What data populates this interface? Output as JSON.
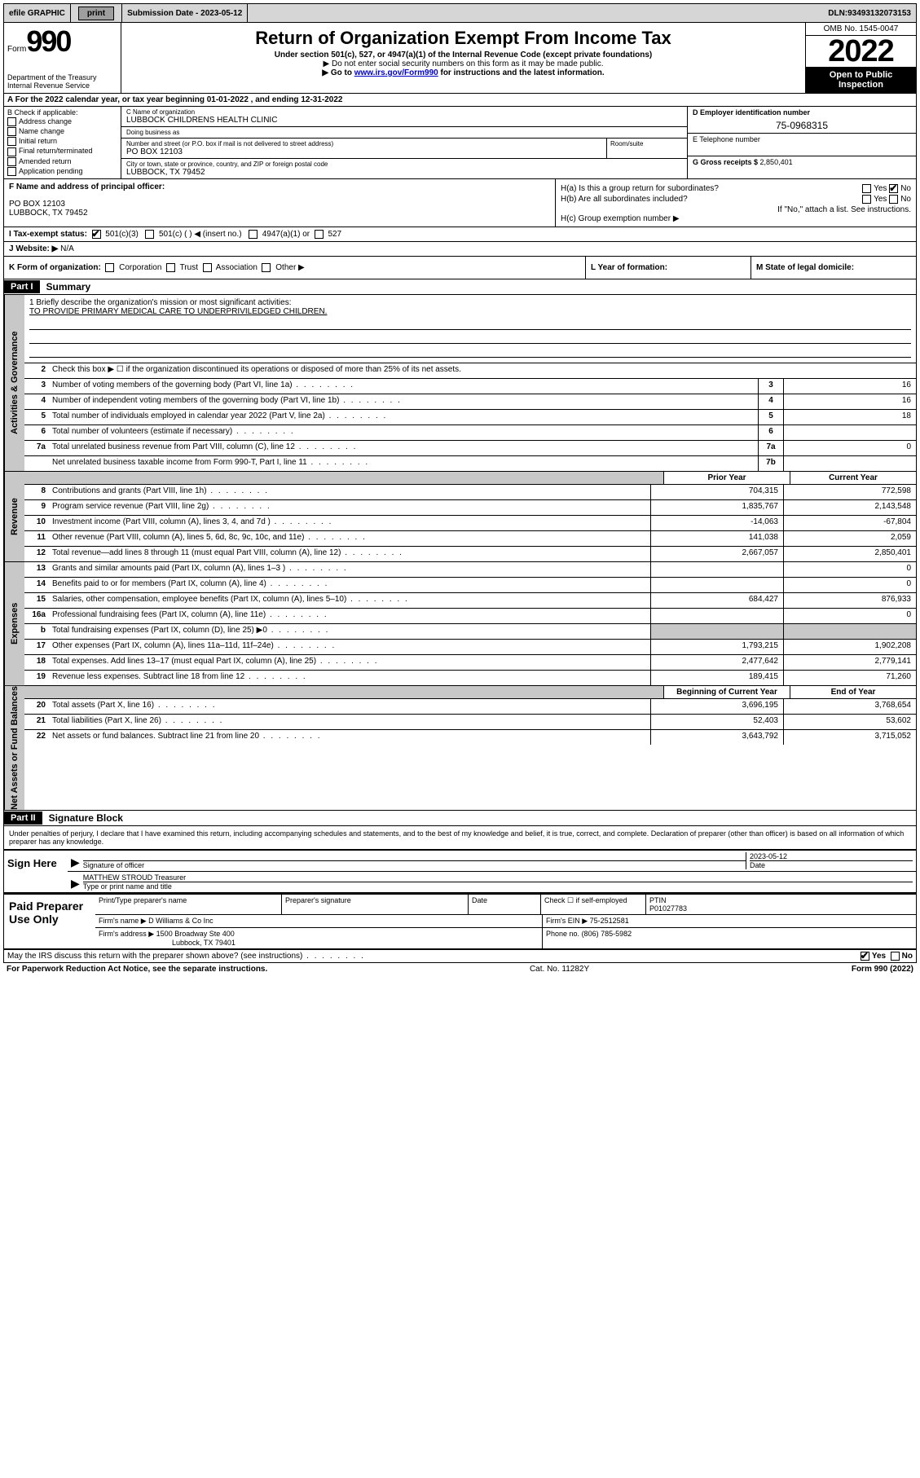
{
  "topbar": {
    "efile": "efile GRAPHIC",
    "print": "print",
    "subdate_label": "Submission Date - ",
    "subdate": "2023-05-12",
    "dln_label": "DLN: ",
    "dln": "93493132073153"
  },
  "header": {
    "form_prefix": "Form",
    "form_num": "990",
    "dept": "Department of the Treasury",
    "irs": "Internal Revenue Service",
    "title": "Return of Organization Exempt From Income Tax",
    "subtitle": "Under section 501(c), 527, or 4947(a)(1) of the Internal Revenue Code (except private foundations)",
    "note1": "▶ Do not enter social security numbers on this form as it may be made public.",
    "note2_pre": "▶ Go to ",
    "note2_link": "www.irs.gov/Form990",
    "note2_post": " for instructions and the latest information.",
    "omb": "OMB No. 1545-0047",
    "year": "2022",
    "open": "Open to Public Inspection"
  },
  "rowA": {
    "text": "A For the 2022 calendar year, or tax year beginning 01-01-2022   , and ending 12-31-2022"
  },
  "secB": {
    "label": "B Check if applicable:",
    "opts": [
      "Address change",
      "Name change",
      "Initial return",
      "Final return/terminated",
      "Amended return",
      "Application pending"
    ]
  },
  "secC": {
    "name_label": "C Name of organization",
    "name": "LUBBOCK CHILDRENS HEALTH CLINIC",
    "dba_label": "Doing business as",
    "addr_label": "Number and street (or P.O. box if mail is not delivered to street address)",
    "addr": "PO BOX 12103",
    "room_label": "Room/suite",
    "city_label": "City or town, state or province, country, and ZIP or foreign postal code",
    "city": "LUBBOCK, TX  79452"
  },
  "secD": {
    "ein_label": "D Employer identification number",
    "ein": "75-0968315",
    "tel_label": "E Telephone number",
    "gross_label": "G Gross receipts $ ",
    "gross": "2,850,401"
  },
  "secF": {
    "label": "F Name and address of principal officer:",
    "addr1": "PO BOX 12103",
    "addr2": "LUBBOCK, TX  79452"
  },
  "secH": {
    "ha": "H(a)  Is this a group return for subordinates?",
    "hb": "H(b)  Are all subordinates included?",
    "hb_note": "If \"No,\" attach a list. See instructions.",
    "hc": "H(c)  Group exemption number ▶",
    "yes": "Yes",
    "no": "No"
  },
  "secI": {
    "label": "I   Tax-exempt status:",
    "c3": "501(c)(3)",
    "c_other": "501(c) (   ) ◀ (insert no.)",
    "a4947": "4947(a)(1) or",
    "s527": "527"
  },
  "secJ": {
    "label": "J   Website: ▶",
    "val": "N/A"
  },
  "secK": {
    "label": "K Form of organization:",
    "opts": [
      "Corporation",
      "Trust",
      "Association",
      "Other ▶"
    ]
  },
  "secL": {
    "label": "L Year of formation:"
  },
  "secM": {
    "label": "M State of legal domicile:"
  },
  "part1": {
    "header": "Part I",
    "title": "Summary",
    "mission_label": "1  Briefly describe the organization's mission or most significant activities:",
    "mission": "TO PROVIDE PRIMARY MEDICAL CARE TO UNDERPRIVILEDGED CHILDREN.",
    "line2": "Check this box ▶ ☐  if the organization discontinued its operations or disposed of more than 25% of its net assets.",
    "tabs": {
      "gov": "Activities & Governance",
      "rev": "Revenue",
      "exp": "Expenses",
      "net": "Net Assets or Fund Balances"
    },
    "hdr_prior": "Prior Year",
    "hdr_current": "Current Year",
    "hdr_begin": "Beginning of Current Year",
    "hdr_end": "End of Year",
    "gov_lines": [
      {
        "n": "3",
        "d": "Number of voting members of the governing body (Part VI, line 1a)",
        "r": "3",
        "v": "16"
      },
      {
        "n": "4",
        "d": "Number of independent voting members of the governing body (Part VI, line 1b)",
        "r": "4",
        "v": "16"
      },
      {
        "n": "5",
        "d": "Total number of individuals employed in calendar year 2022 (Part V, line 2a)",
        "r": "5",
        "v": "18"
      },
      {
        "n": "6",
        "d": "Total number of volunteers (estimate if necessary)",
        "r": "6",
        "v": ""
      },
      {
        "n": "7a",
        "d": "Total unrelated business revenue from Part VIII, column (C), line 12",
        "r": "7a",
        "v": "0"
      },
      {
        "n": "",
        "d": "Net unrelated business taxable income from Form 990-T, Part I, line 11",
        "r": "7b",
        "v": ""
      }
    ],
    "rev_lines": [
      {
        "n": "8",
        "d": "Contributions and grants (Part VIII, line 1h)",
        "p": "704,315",
        "c": "772,598"
      },
      {
        "n": "9",
        "d": "Program service revenue (Part VIII, line 2g)",
        "p": "1,835,767",
        "c": "2,143,548"
      },
      {
        "n": "10",
        "d": "Investment income (Part VIII, column (A), lines 3, 4, and 7d )",
        "p": "-14,063",
        "c": "-67,804"
      },
      {
        "n": "11",
        "d": "Other revenue (Part VIII, column (A), lines 5, 6d, 8c, 9c, 10c, and 11e)",
        "p": "141,038",
        "c": "2,059"
      },
      {
        "n": "12",
        "d": "Total revenue—add lines 8 through 11 (must equal Part VIII, column (A), line 12)",
        "p": "2,667,057",
        "c": "2,850,401"
      }
    ],
    "exp_lines": [
      {
        "n": "13",
        "d": "Grants and similar amounts paid (Part IX, column (A), lines 1–3 )",
        "p": "",
        "c": "0"
      },
      {
        "n": "14",
        "d": "Benefits paid to or for members (Part IX, column (A), line 4)",
        "p": "",
        "c": "0"
      },
      {
        "n": "15",
        "d": "Salaries, other compensation, employee benefits (Part IX, column (A), lines 5–10)",
        "p": "684,427",
        "c": "876,933"
      },
      {
        "n": "16a",
        "d": "Professional fundraising fees (Part IX, column (A), line 11e)",
        "p": "",
        "c": "0"
      },
      {
        "n": "b",
        "d": "Total fundraising expenses (Part IX, column (D), line 25) ▶0",
        "p": "shaded",
        "c": "shaded"
      },
      {
        "n": "17",
        "d": "Other expenses (Part IX, column (A), lines 11a–11d, 11f–24e)",
        "p": "1,793,215",
        "c": "1,902,208"
      },
      {
        "n": "18",
        "d": "Total expenses. Add lines 13–17 (must equal Part IX, column (A), line 25)",
        "p": "2,477,642",
        "c": "2,779,141"
      },
      {
        "n": "19",
        "d": "Revenue less expenses. Subtract line 18 from line 12",
        "p": "189,415",
        "c": "71,260"
      }
    ],
    "net_lines": [
      {
        "n": "20",
        "d": "Total assets (Part X, line 16)",
        "p": "3,696,195",
        "c": "3,768,654"
      },
      {
        "n": "21",
        "d": "Total liabilities (Part X, line 26)",
        "p": "52,403",
        "c": "53,602"
      },
      {
        "n": "22",
        "d": "Net assets or fund balances. Subtract line 21 from line 20",
        "p": "3,643,792",
        "c": "3,715,052"
      }
    ]
  },
  "part2": {
    "header": "Part II",
    "title": "Signature Block",
    "decl": "Under penalties of perjury, I declare that I have examined this return, including accompanying schedules and statements, and to the best of my knowledge and belief, it is true, correct, and complete. Declaration of preparer (other than officer) is based on all information of which preparer has any knowledge.",
    "sign_here": "Sign Here",
    "sig_officer": "Signature of officer",
    "sig_date": "2023-05-12",
    "date_lbl": "Date",
    "officer_name": "MATTHEW STROUD  Treasurer",
    "officer_lbl": "Type or print name and title",
    "paid": "Paid Preparer Use Only",
    "prep_name_lbl": "Print/Type preparer's name",
    "prep_sig_lbl": "Preparer's signature",
    "prep_date_lbl": "Date",
    "check_lbl": "Check ☐ if self-employed",
    "ptin_lbl": "PTIN",
    "ptin": "P01027783",
    "firm_name_lbl": "Firm's name    ▶",
    "firm_name": "D Williams & Co Inc",
    "firm_ein_lbl": "Firm's EIN ▶",
    "firm_ein": "75-2512581",
    "firm_addr_lbl": "Firm's address ▶",
    "firm_addr1": "1500 Broadway Ste 400",
    "firm_addr2": "Lubbock, TX  79401",
    "phone_lbl": "Phone no.",
    "phone": "(806) 785-5982",
    "may_discuss": "May the IRS discuss this return with the preparer shown above? (see instructions)",
    "yes": "Yes",
    "no": "No"
  },
  "footer": {
    "pra": "For Paperwork Reduction Act Notice, see the separate instructions.",
    "cat": "Cat. No. 11282Y",
    "form": "Form 990 (2022)"
  }
}
